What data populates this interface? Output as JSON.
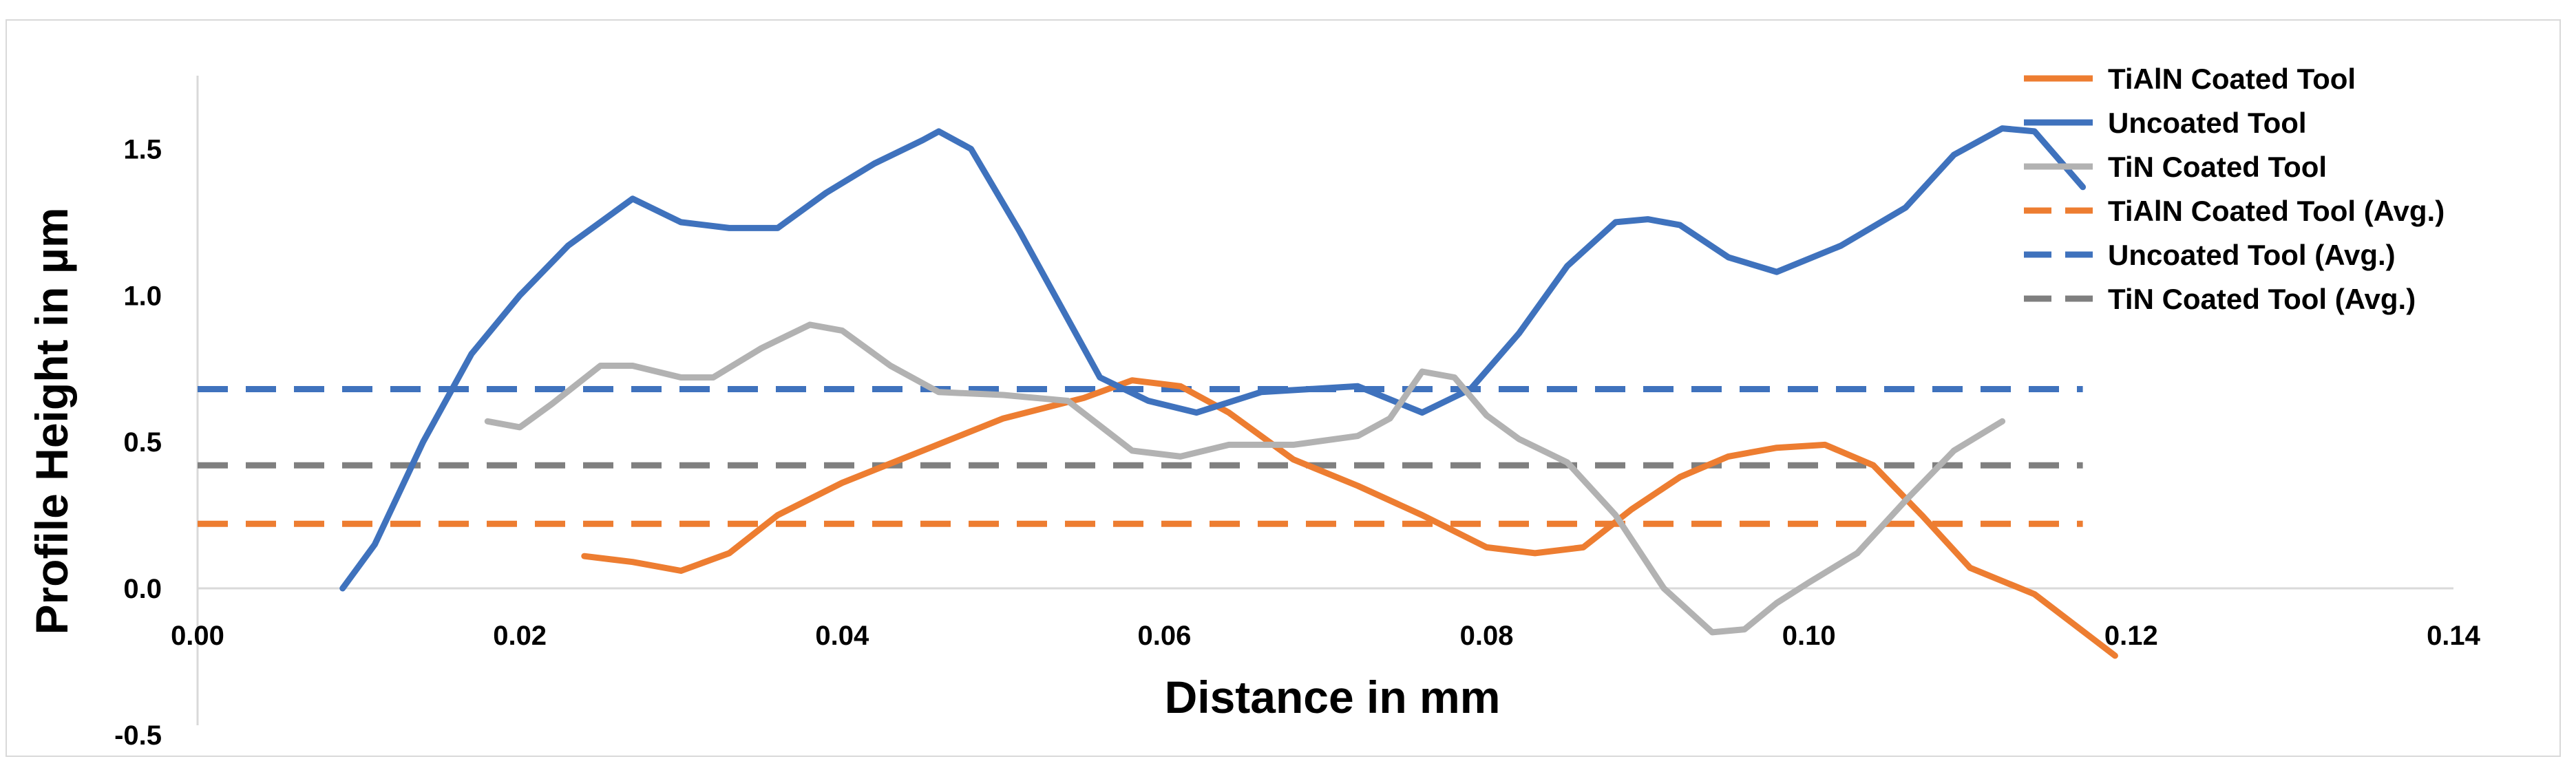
{
  "chart_data": {
    "type": "line",
    "xlabel": "Distance in mm",
    "ylabel": "Profile Height in µm",
    "xlim": [
      0,
      0.14
    ],
    "ylim": [
      -0.5,
      1.75
    ],
    "x_ticks": [
      "0.00",
      "0.02",
      "0.04",
      "0.06",
      "0.08",
      "0.10",
      "0.12",
      "0.14"
    ],
    "y_ticks": [
      "-0.5",
      "0.0",
      "0.5",
      "1.0",
      "1.5"
    ],
    "x_tick_values": [
      0,
      0.02,
      0.04,
      0.06,
      0.08,
      0.1,
      0.12,
      0.14
    ],
    "y_tick_values": [
      -0.5,
      0,
      0.5,
      1.0,
      1.5
    ],
    "grid": false,
    "legend_position": "top-right",
    "series": [
      {
        "name": "TiAlN Coated Tool",
        "color": "#ed7d31",
        "style": "solid",
        "x": [
          0.024,
          0.027,
          0.03,
          0.033,
          0.036,
          0.04,
          0.045,
          0.05,
          0.055,
          0.058,
          0.061,
          0.064,
          0.068,
          0.072,
          0.076,
          0.08,
          0.083,
          0.086,
          0.089,
          0.092,
          0.095,
          0.098,
          0.101,
          0.104,
          0.107,
          0.11,
          0.114,
          0.119
        ],
        "y": [
          0.11,
          0.09,
          0.06,
          0.12,
          0.25,
          0.36,
          0.47,
          0.58,
          0.65,
          0.71,
          0.69,
          0.6,
          0.44,
          0.35,
          0.25,
          0.14,
          0.12,
          0.14,
          0.27,
          0.38,
          0.45,
          0.48,
          0.49,
          0.42,
          0.25,
          0.07,
          -0.02,
          -0.23
        ]
      },
      {
        "name": "Uncoated Tool",
        "color": "#3f72bd",
        "style": "solid",
        "x": [
          0.009,
          0.011,
          0.014,
          0.017,
          0.02,
          0.023,
          0.027,
          0.03,
          0.033,
          0.036,
          0.039,
          0.042,
          0.045,
          0.046,
          0.048,
          0.051,
          0.054,
          0.056,
          0.059,
          0.062,
          0.066,
          0.069,
          0.072,
          0.076,
          0.079,
          0.082,
          0.085,
          0.088,
          0.09,
          0.092,
          0.095,
          0.098,
          0.102,
          0.106,
          0.109,
          0.112,
          0.114,
          0.117
        ],
        "y": [
          0.0,
          0.15,
          0.5,
          0.8,
          1.0,
          1.17,
          1.33,
          1.25,
          1.23,
          1.23,
          1.35,
          1.45,
          1.53,
          1.56,
          1.5,
          1.22,
          0.92,
          0.72,
          0.64,
          0.6,
          0.67,
          0.68,
          0.69,
          0.6,
          0.68,
          0.87,
          1.1,
          1.25,
          1.26,
          1.24,
          1.13,
          1.08,
          1.17,
          1.3,
          1.48,
          1.57,
          1.56,
          1.37
        ]
      },
      {
        "name": "TiN Coated Tool",
        "color": "#b2b2b2",
        "style": "solid",
        "x": [
          0.018,
          0.02,
          0.022,
          0.025,
          0.027,
          0.03,
          0.032,
          0.035,
          0.038,
          0.04,
          0.043,
          0.046,
          0.05,
          0.054,
          0.058,
          0.061,
          0.064,
          0.068,
          0.072,
          0.074,
          0.076,
          0.078,
          0.08,
          0.082,
          0.085,
          0.088,
          0.091,
          0.094,
          0.096,
          0.098,
          0.1,
          0.103,
          0.106,
          0.109,
          0.112
        ],
        "y": [
          0.57,
          0.55,
          0.63,
          0.76,
          0.76,
          0.72,
          0.72,
          0.82,
          0.9,
          0.88,
          0.76,
          0.67,
          0.66,
          0.64,
          0.47,
          0.45,
          0.49,
          0.49,
          0.52,
          0.58,
          0.74,
          0.72,
          0.59,
          0.51,
          0.43,
          0.25,
          0.0,
          -0.15,
          -0.14,
          -0.05,
          0.02,
          0.12,
          0.3,
          0.47,
          0.57
        ]
      },
      {
        "name": "TiAlN Coated Tool (Avg.)",
        "color": "#ed7d31",
        "style": "dashed",
        "x": [
          0.0,
          0.117
        ],
        "y": [
          0.22,
          0.22
        ]
      },
      {
        "name": "Uncoated Tool (Avg.)",
        "color": "#3f72bd",
        "style": "dashed",
        "x": [
          0.0,
          0.117
        ],
        "y": [
          0.68,
          0.68
        ]
      },
      {
        "name": "TiN Coated Tool (Avg.)",
        "color": "#7f7f7f",
        "style": "dashed",
        "x": [
          0.0,
          0.117
        ],
        "y": [
          0.42,
          0.42
        ]
      }
    ]
  }
}
